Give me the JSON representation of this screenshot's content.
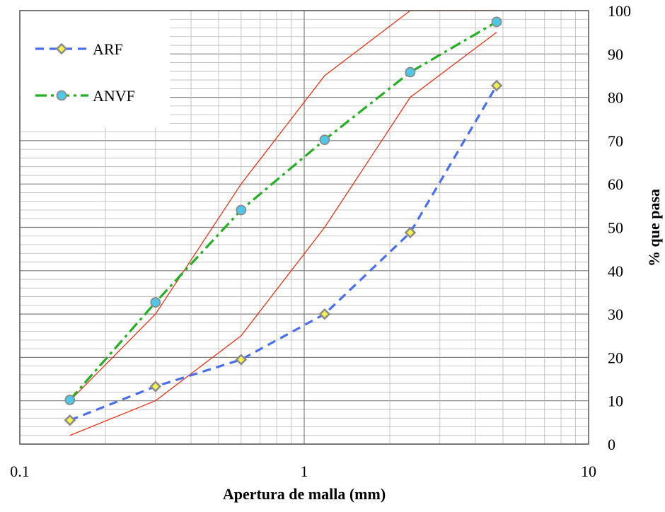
{
  "chart_data": {
    "type": "line",
    "title": "",
    "xlabel": "Apertura de malla (mm)",
    "ylabel": "% que pasa",
    "xscale": "log",
    "xlim": [
      0.1,
      10
    ],
    "ylim": [
      0,
      100
    ],
    "yaxis_side": "right",
    "x_tick_labels": [
      "0.1",
      "1",
      "10"
    ],
    "y_tick_labels": [
      "0",
      "10",
      "20",
      "30",
      "40",
      "50",
      "60",
      "70",
      "80",
      "90",
      "100"
    ],
    "grid": true,
    "legend": {
      "position": "top-left",
      "entries": [
        "ARF",
        "ANVF"
      ]
    },
    "series": [
      {
        "name": "ARF",
        "x": [
          0.15,
          0.3,
          0.6,
          1.18,
          2.36,
          4.75
        ],
        "y": [
          5.5,
          13.3,
          19.5,
          30.0,
          48.8,
          82.7
        ],
        "color": "#4a6ef0",
        "marker": "diamond",
        "marker_fill": "#f3f34a",
        "line_style": "dashed"
      },
      {
        "name": "ANVF",
        "x": [
          0.15,
          0.3,
          0.6,
          1.18,
          2.36,
          4.75
        ],
        "y": [
          10.2,
          32.7,
          54.0,
          70.2,
          85.8,
          97.4
        ],
        "color": "#22b022",
        "marker": "circle",
        "marker_fill": "#4fc8e8",
        "line_style": "dashdot"
      }
    ],
    "limit_curves": [
      {
        "x": [
          0.15,
          0.3,
          0.6,
          1.18,
          2.36,
          4.75
        ],
        "y": [
          10,
          30,
          60,
          85,
          100,
          100
        ],
        "color": "#ee3010"
      },
      {
        "x": [
          0.15,
          0.3,
          0.6,
          1.18,
          2.36,
          4.75
        ],
        "y": [
          2,
          10,
          25,
          50,
          80,
          95
        ],
        "color": "#ee3010"
      }
    ]
  }
}
